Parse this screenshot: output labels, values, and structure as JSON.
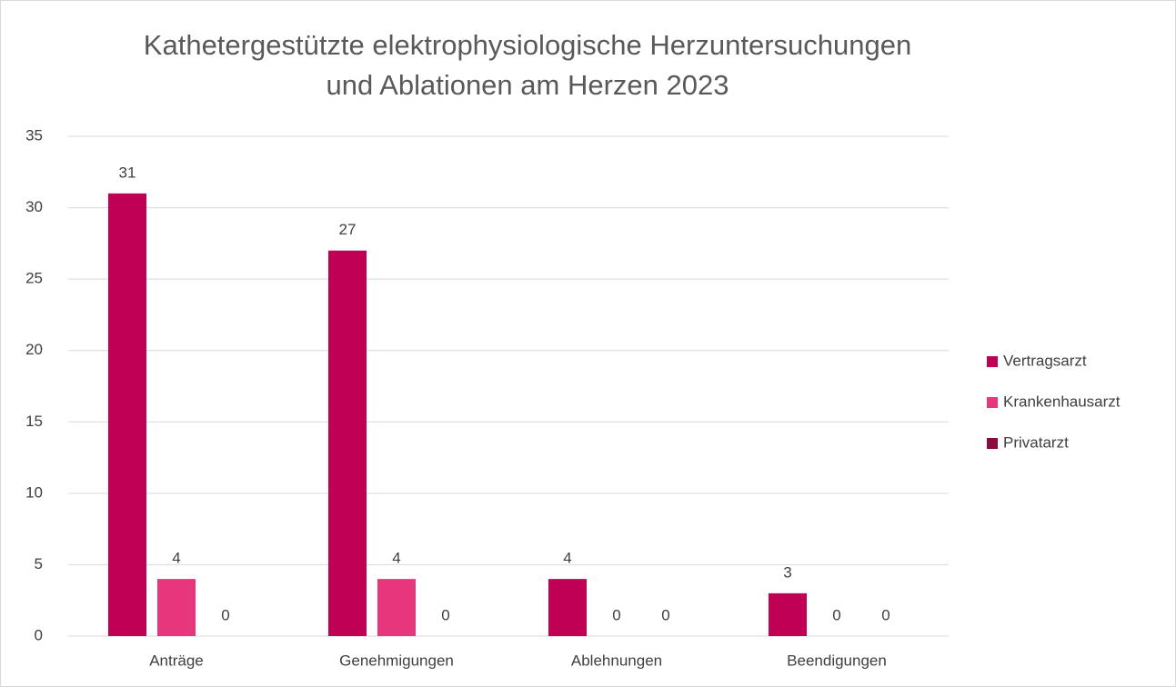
{
  "chart_data": {
    "type": "bar",
    "title": "Kathetergestützte elektrophysiologische Herzuntersuchungen und Ablationen am Herzen 2023",
    "categories": [
      "Anträge",
      "Genehmigungen",
      "Ablehnungen",
      "Beendigungen"
    ],
    "series": [
      {
        "name": "Vertragsarzt",
        "color": "#c00054",
        "values": [
          31,
          27,
          4,
          3
        ]
      },
      {
        "name": "Krankenhausarzt",
        "color": "#e8367b",
        "values": [
          4,
          4,
          0,
          0
        ]
      },
      {
        "name": "Privatarzt",
        "color": "#8c0a3e",
        "values": [
          0,
          0,
          0,
          0
        ]
      }
    ],
    "ylim": [
      0,
      35
    ],
    "yticks": [
      0,
      5,
      10,
      15,
      20,
      25,
      30,
      35
    ],
    "grid": true,
    "legend": "right"
  }
}
